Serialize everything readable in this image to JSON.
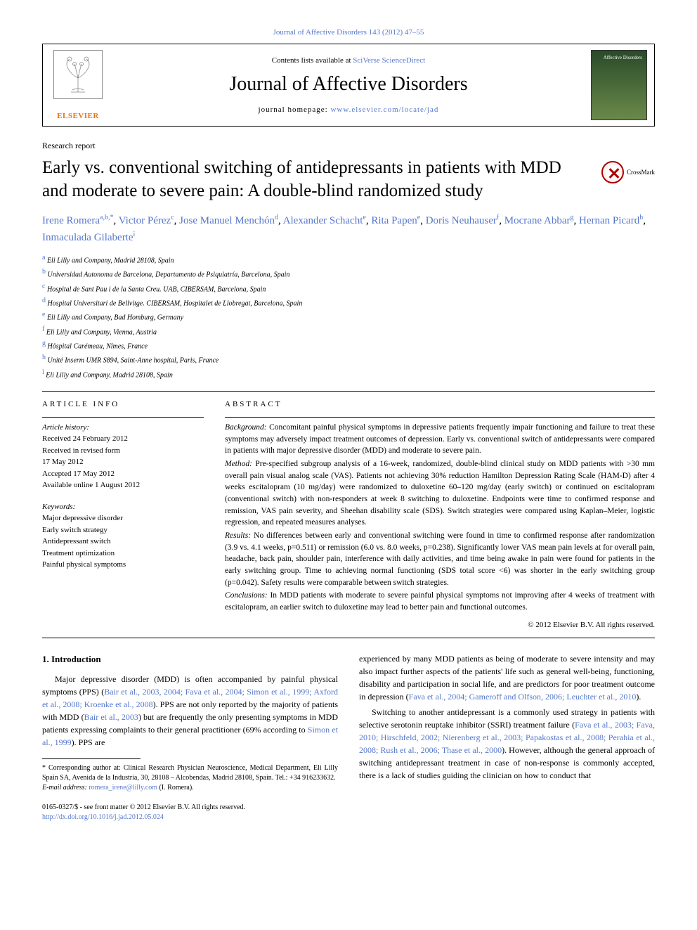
{
  "top_citation": "Journal of Affective Disorders 143 (2012) 47–55",
  "header": {
    "contents_prefix": "Contents lists available at ",
    "contents_link": "SciVerse ScienceDirect",
    "journal_name": "Journal of Affective Disorders",
    "homepage_prefix": "journal homepage: ",
    "homepage_link": "www.elsevier.com/locate/jad",
    "publisher": "ELSEVIER",
    "cover_label": "Affective Disorders"
  },
  "article": {
    "section_label": "Research report",
    "title": "Early vs. conventional switching of antidepressants in patients with MDD and moderate to severe pain: A double-blind randomized study",
    "crossmark": "CrossMark"
  },
  "authors": [
    {
      "name": "Irene Romera",
      "sup": "a,b,*"
    },
    {
      "name": "Victor Pérez",
      "sup": "c"
    },
    {
      "name": "Jose Manuel Menchón",
      "sup": "d"
    },
    {
      "name": "Alexander Schacht",
      "sup": "e"
    },
    {
      "name": "Rita Papen",
      "sup": "e"
    },
    {
      "name": "Doris Neuhauser",
      "sup": "f"
    },
    {
      "name": "Mocrane Abbar",
      "sup": "g"
    },
    {
      "name": "Hernan Picard",
      "sup": "h"
    },
    {
      "name": "Inmaculada Gilaberte",
      "sup": "i"
    }
  ],
  "affiliations": [
    {
      "sup": "a",
      "text": "Eli Lilly and Company, Madrid 28108, Spain"
    },
    {
      "sup": "b",
      "text": "Universidad Autonoma de Barcelona, Departamento de Psiquiatría, Barcelona, Spain"
    },
    {
      "sup": "c",
      "text": "Hospital de Sant Pau i de la Santa Creu. UAB, CIBERSAM, Barcelona, Spain"
    },
    {
      "sup": "d",
      "text": "Hospital Universitari de Bellvitge. CIBERSAM, Hospitalet de Llobregat, Barcelona, Spain"
    },
    {
      "sup": "e",
      "text": "Eli Lilly and Company, Bad Homburg, Germany"
    },
    {
      "sup": "f",
      "text": "Eli Lilly and Company, Vienna, Austria"
    },
    {
      "sup": "g",
      "text": "Hôspital Carémeau, Nîmes, France"
    },
    {
      "sup": "h",
      "text": "Unité Inserm UMR S894, Saint-Anne hospital, Paris, France"
    },
    {
      "sup": "i",
      "text": "Eli Lilly and Company, Madrid 28108, Spain"
    }
  ],
  "article_info": {
    "heading": "ARTICLE INFO",
    "history_label": "Article history:",
    "history": [
      "Received 24 February 2012",
      "Received in revised form",
      "17 May 2012",
      "Accepted 17 May 2012",
      "Available online 1 August 2012"
    ],
    "keywords_label": "Keywords:",
    "keywords": [
      "Major depressive disorder",
      "Early switch strategy",
      "Antidepressant switch",
      "Treatment optimization",
      "Painful physical symptoms"
    ]
  },
  "abstract": {
    "heading": "ABSTRACT",
    "background_label": "Background:",
    "background": "Concomitant painful physical symptoms in depressive patients frequently impair functioning and failure to treat these symptoms may adversely impact treatment outcomes of depression. Early vs. conventional switch of antidepressants were compared in patients with major depressive disorder (MDD) and moderate to severe pain.",
    "method_label": "Method:",
    "method": "Pre-specified subgroup analysis of a 16-week, randomized, double-blind clinical study on MDD patients with >30 mm overall pain visual analog scale (VAS). Patients not achieving 30% reduction Hamilton Depression Rating Scale (HAM-D) after 4 weeks escitalopram (10 mg/day) were randomized to duloxetine 60–120 mg/day (early switch) or continued on escitalopram (conventional switch) with non-responders at week 8 switching to duloxetine. Endpoints were time to confirmed response and remission, VAS pain severity, and Sheehan disability scale (SDS). Switch strategies were compared using Kaplan–Meier, logistic regression, and repeated measures analyses.",
    "results_label": "Results:",
    "results": "No differences between early and conventional switching were found in time to confirmed response after randomization (3.9 vs. 4.1 weeks, p=0.511) or remission (6.0 vs. 8.0 weeks, p=0.238). Significantly lower VAS mean pain levels at for overall pain, headache, back pain, shoulder pain, interference with daily activities, and time being awake in pain were found for patients in the early switching group. Time to achieving normal functioning (SDS total score <6) was shorter in the early switching group (p=0.042). Safety results were comparable between switch strategies.",
    "conclusions_label": "Conclusions:",
    "conclusions": "In MDD patients with moderate to severe painful physical symptoms not improving after 4 weeks of treatment with escitalopram, an earlier switch to duloxetine may lead to better pain and functional outcomes.",
    "copyright": "© 2012 Elsevier B.V. All rights reserved."
  },
  "body": {
    "intro_heading": "1. Introduction",
    "p1_pre": "Major depressive disorder (MDD) is often accompanied by painful physical symptoms (PPS) (",
    "p1_refs": "Bair et al., 2003, 2004; Fava et al., 2004; Simon et al., 1999; Axford et al., 2008; Kroenke et al., 2008",
    "p1_mid": "). PPS are not only reported by the majority of patients with MDD (",
    "p1_ref2": "Bair et al., 2003",
    "p1_post": ") but are frequently the only presenting symptoms in MDD patients expressing complaints to their general practitioner (69% according to ",
    "p1_ref3": "Simon et al., 1999",
    "p1_end": "). PPS are",
    "p2_pre": "experienced by many MDD patients as being of moderate to severe intensity and may also impact further aspects of the patients' life such as general well-being, functioning, disability and participation in social life, and are predictors for poor treatment outcome in depression (",
    "p2_refs": "Fava et al., 2004; Gameroff and Olfson, 2006; Leuchter et al., 2010",
    "p2_end": ").",
    "p3_pre": "Switching to another antidepressant is a commonly used strategy in patients with selective serotonin reuptake inhibitor (SSRI) treatment failure (",
    "p3_refs": "Fava et al., 2003; Fava, 2010; Hirschfeld, 2002; Nierenberg et al., 2003; Papakostas et al., 2008; Perahia et al., 2008; Rush et al., 2006; Thase et al., 2000",
    "p3_post": "). However, although the general approach of switching antidepressant treatment in case of non-response is commonly accepted, there is a lack of studies guiding the clinician on how to conduct that"
  },
  "footnotes": {
    "corr": "* Corresponding author at: Clinical Research Physician Neuroscience, Medical Department, Eli Lilly Spain SA, Avenida de la Industria, 30, 28108 – Alcobendas, Madrid 28108, Spain. Tel.: +34 916233632.",
    "email_label": "E-mail address:",
    "email": "romera_irene@lilly.com",
    "email_name": "(I. Romera)."
  },
  "footer": {
    "issn": "0165-0327/$ - see front matter © 2012 Elsevier B.V. All rights reserved.",
    "doi": "http://dx.doi.org/10.1016/j.jad.2012.05.024"
  },
  "colors": {
    "link": "#5577cc",
    "elsevier": "#e67817"
  }
}
